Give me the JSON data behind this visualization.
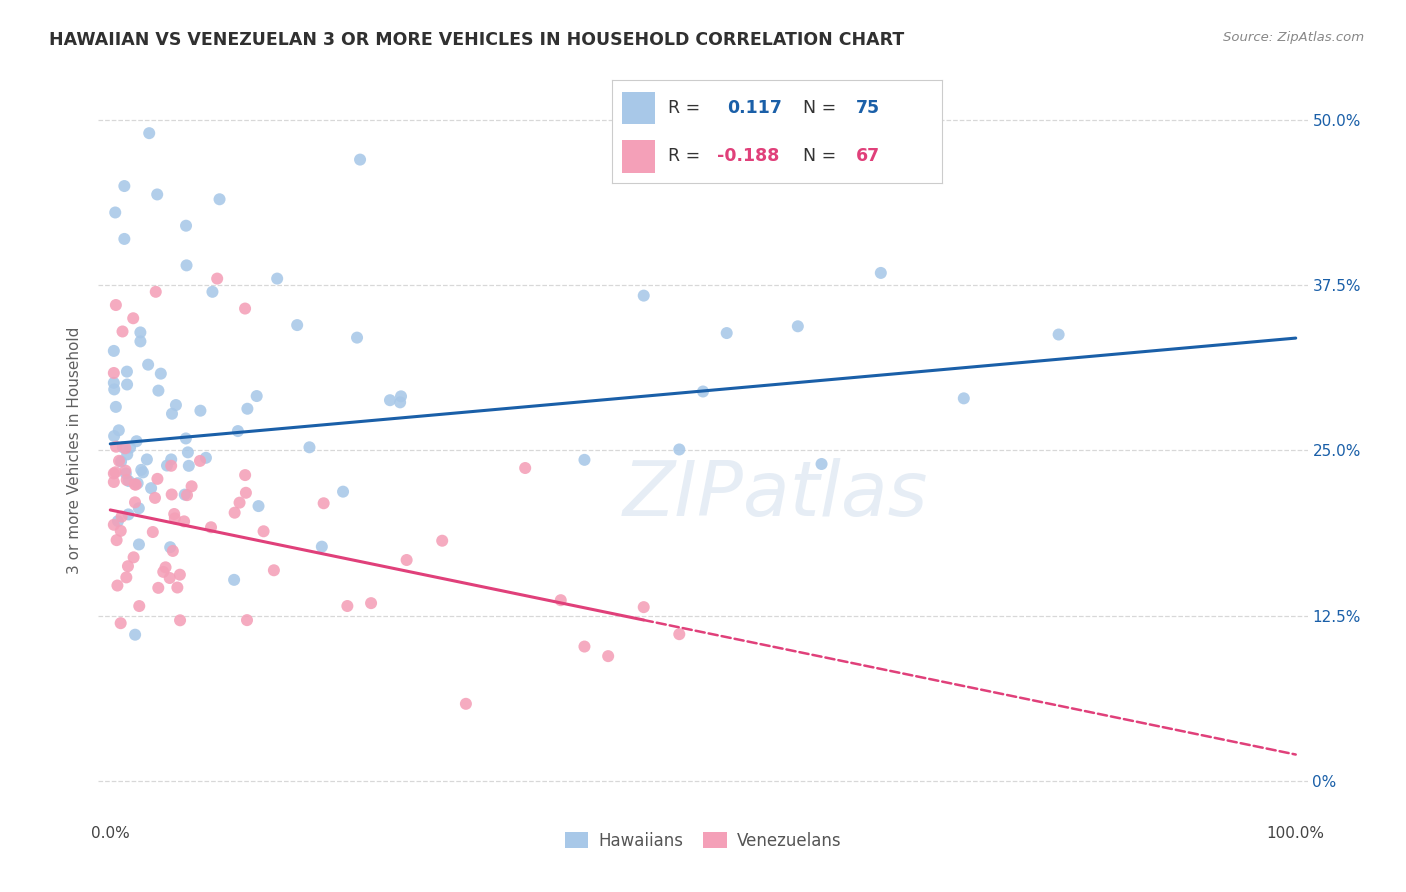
{
  "title": "HAWAIIAN VS VENEZUELAN 3 OR MORE VEHICLES IN HOUSEHOLD CORRELATION CHART",
  "source": "Source: ZipAtlas.com",
  "ylabel": "3 or more Vehicles in Household",
  "hawaiian_color": "#a8c8e8",
  "venezuelan_color": "#f4a0b8",
  "hawaiian_line_color": "#1a5fa8",
  "venezuelan_line_color": "#e0407a",
  "R_hawaiian": 0.117,
  "N_hawaiian": 75,
  "R_venezuelan": -0.188,
  "N_venezuelan": 67,
  "watermark": "ZIPatlas",
  "background_color": "#ffffff",
  "grid_color": "#d8d8d8",
  "title_color": "#303030",
  "source_color": "#888888",
  "ylabel_color": "#606060",
  "right_tick_color": "#1a5fa8",
  "hawaiian_line_y0": 25.5,
  "hawaiian_line_y100": 33.5,
  "venezuelan_line_y0": 20.5,
  "venezuelan_line_y100": 2.0,
  "venezuelan_solid_end": 45,
  "ytick_positions": [
    0,
    12.5,
    25,
    37.5,
    50
  ],
  "ytick_labels_right": [
    "0%",
    "12.5%",
    "25.0%",
    "37.5%",
    "50.0%"
  ],
  "xtick_positions": [
    0,
    100
  ],
  "xtick_labels": [
    "0.0%",
    "100.0%"
  ],
  "ymin": -3,
  "ymax": 53,
  "xmin": -1,
  "xmax": 101
}
